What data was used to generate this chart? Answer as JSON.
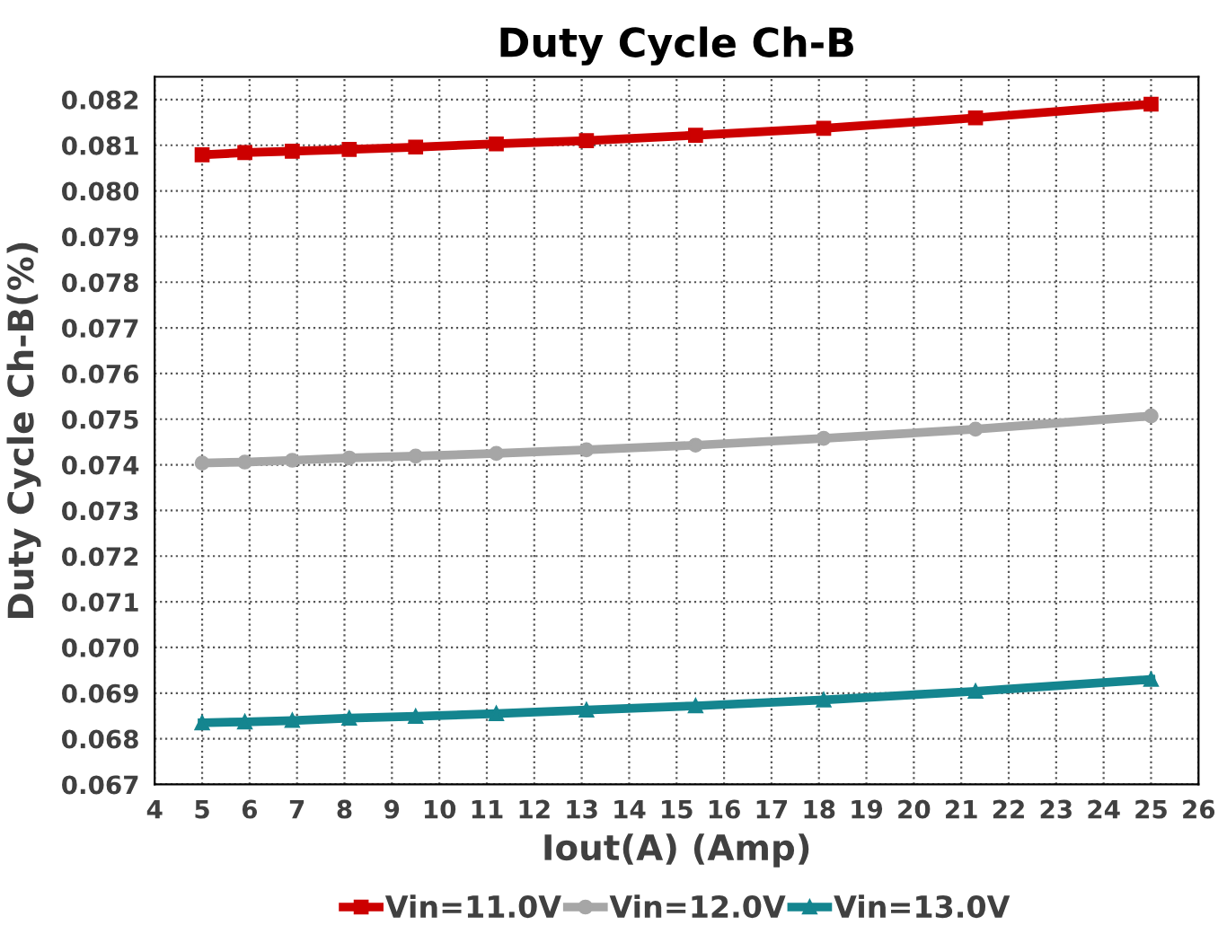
{
  "chart_data": {
    "type": "line",
    "title": "Duty Cycle Ch-B",
    "xlabel": "Iout(A) (Amp)",
    "ylabel": "Duty Cycle Ch-B(%)",
    "x": [
      5,
      5.9,
      6.9,
      8.1,
      9.5,
      11.2,
      13.1,
      15.4,
      18.1,
      21.3,
      25
    ],
    "series": [
      {
        "name": "Vin=11.0V",
        "color": "#cc0000",
        "marker": "square",
        "values": [
          0.08079,
          0.08084,
          0.08087,
          0.08091,
          0.08096,
          0.08103,
          0.0811,
          0.08122,
          0.08137,
          0.0816,
          0.0819
        ]
      },
      {
        "name": "Vin=12.0V",
        "color": "#a6a6a6",
        "marker": "circle",
        "values": [
          0.07404,
          0.07406,
          0.0741,
          0.07415,
          0.07419,
          0.07425,
          0.07433,
          0.07443,
          0.07458,
          0.07478,
          0.07507
        ]
      },
      {
        "name": "Vin=13.0V",
        "color": "#14858f",
        "marker": "triangle",
        "values": [
          0.06835,
          0.06837,
          0.0684,
          0.06845,
          0.06849,
          0.06855,
          0.06863,
          0.06872,
          0.06885,
          0.06904,
          0.0693
        ]
      }
    ],
    "xlim": [
      4,
      26
    ],
    "xticks": [
      4,
      5,
      6,
      7,
      8,
      9,
      10,
      11,
      12,
      13,
      14,
      15,
      16,
      17,
      18,
      19,
      20,
      21,
      22,
      23,
      24,
      25,
      26
    ],
    "ylim": [
      0.067,
      0.0825
    ],
    "yticks": [
      {
        "value": 0.067,
        "label": "0.067"
      },
      {
        "value": 0.068,
        "label": "0.068"
      },
      {
        "value": 0.069,
        "label": "0.069"
      },
      {
        "value": 0.07,
        "label": "0.070"
      },
      {
        "value": 0.071,
        "label": "0.071"
      },
      {
        "value": 0.072,
        "label": "0.072"
      },
      {
        "value": 0.073,
        "label": "0.073"
      },
      {
        "value": 0.074,
        "label": "0.074"
      },
      {
        "value": 0.075,
        "label": "0.075"
      },
      {
        "value": 0.076,
        "label": "0.076"
      },
      {
        "value": 0.077,
        "label": "0.077"
      },
      {
        "value": 0.078,
        "label": "0.078"
      },
      {
        "value": 0.079,
        "label": "0.079"
      },
      {
        "value": 0.08,
        "label": "0.080"
      },
      {
        "value": 0.081,
        "label": "0.081"
      },
      {
        "value": 0.082,
        "label": "0.082"
      }
    ],
    "grid": true,
    "legend": "bottom",
    "line_style": "solid"
  }
}
